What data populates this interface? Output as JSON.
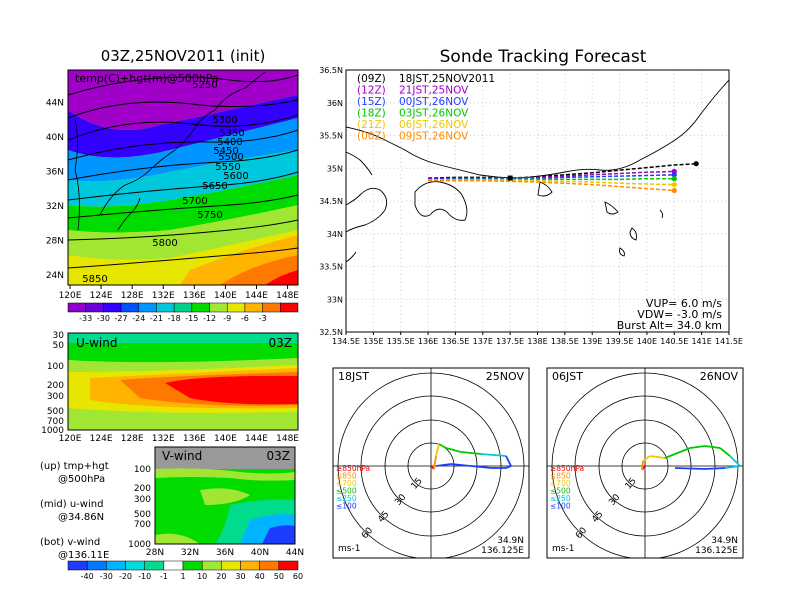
{
  "main_title": "03Z,25NOV2011 (init)",
  "track_title": "Sonde Tracking Forecast",
  "upper_map": {
    "overlay_label": "temp(C)+hgt(m)@500hPa",
    "x_ticks": [
      "120E",
      "124E",
      "128E",
      "132E",
      "136E",
      "140E",
      "144E",
      "148E"
    ],
    "y_ticks": [
      "24N",
      "28N",
      "32N",
      "36N",
      "40N",
      "44N"
    ],
    "contour_labels": [
      "5250",
      "5300",
      "5350",
      "5400",
      "5450",
      "5500",
      "5550",
      "5600",
      "5650",
      "5700",
      "5750",
      "5800",
      "5850"
    ],
    "colorbar_labels": [
      "-33",
      "-30",
      "-27",
      "-24",
      "-21",
      "-18",
      "-15",
      "-12",
      "-9",
      "-6",
      "-3"
    ],
    "colorbar_colors": [
      "#9000c8",
      "#6a00dc",
      "#3300ff",
      "#0050ff",
      "#0096ff",
      "#00c8dc",
      "#00d28c",
      "#00dc00",
      "#a0e632",
      "#e6e600",
      "#ffb400",
      "#ff7800",
      "#ff0000"
    ]
  },
  "u_wind": {
    "title": "U-wind",
    "time": "03Z",
    "y_ticks": [
      "30",
      "50",
      "100",
      "200",
      "300",
      "500",
      "700",
      "1000"
    ],
    "x_ticks": [
      "120E",
      "124E",
      "128E",
      "132E",
      "136E",
      "140E",
      "144E",
      "148E"
    ]
  },
  "v_wind": {
    "title": "V-wind",
    "time": "03Z",
    "y_ticks": [
      "100",
      "200",
      "300",
      "500",
      "700",
      "1000"
    ],
    "x_ticks": [
      "28N",
      "32N",
      "36N",
      "40N",
      "44N"
    ]
  },
  "side_labels": {
    "up_1": "(up) tmp+hgt",
    "up_2": "@500hPa",
    "mid_1": "(mid) u-wind",
    "mid_2": "@34.86N",
    "bot_1": "(bot) v-wind",
    "bot_2": "@136.11E"
  },
  "wind_colorbar": {
    "labels": [
      "-40",
      "-30",
      "-20",
      "-10",
      "-1",
      "1",
      "10",
      "20",
      "30",
      "40",
      "50",
      "60"
    ],
    "colors": [
      "#1e3cff",
      "#0078ff",
      "#00b4ff",
      "#00dcdc",
      "#00dc8c",
      "#ffffff",
      "#00dc00",
      "#a0e632",
      "#e6e600",
      "#ffb400",
      "#ff7800",
      "#ff0000"
    ]
  },
  "legend_entries": [
    {
      "code": "(09Z)",
      "text": "18JST,25NOV2011",
      "color": "#000000"
    },
    {
      "code": "(12Z)",
      "text": "21JST,25NOV",
      "color": "#a000c8"
    },
    {
      "code": "(15Z)",
      "text": "00JST,26NOV",
      "color": "#1e3cff"
    },
    {
      "code": "(18Z)",
      "text": "03JST,26NOV",
      "color": "#00c800"
    },
    {
      "code": "(21Z)",
      "text": "06JST,26NOV",
      "color": "#f0c800"
    },
    {
      "code": "(00Z)",
      "text": "09JST,26NOV",
      "color": "#ff8c00"
    }
  ],
  "track_info": {
    "vup": "VUP=  6.0  m/s",
    "vdw": "VDW= -3.0  m/s",
    "burst": "Burst Alt= 34.0  km"
  },
  "hodographs": [
    {
      "time": "18JST",
      "date": "25NOV",
      "lat": "34.9N",
      "lon": "136.125E",
      "unit": "ms-1"
    },
    {
      "time": "06JST",
      "date": "26NOV",
      "lat": "34.9N",
      "lon": "136.125E",
      "unit": "ms-1"
    }
  ],
  "hodo_rings": [
    "15",
    "30",
    "45",
    "60"
  ],
  "hodo_legend": [
    {
      "label": "≥850hPa",
      "color": "#ff0000"
    },
    {
      "label": "≤850",
      "color": "#ff8c00"
    },
    {
      "label": "≤700",
      "color": "#f0c800"
    },
    {
      "label": "≤500",
      "color": "#00c800"
    },
    {
      "label": "≤250",
      "color": "#00c8dc"
    },
    {
      "label": "≤100",
      "color": "#1e3cff"
    }
  ],
  "chart_data": {
    "type": "line",
    "title": "Sonde Tracking Forecast",
    "xlabel": "",
    "ylabel": "",
    "x_ticks": [
      "134.5E",
      "135E",
      "135.5E",
      "136E",
      "136.5E",
      "137E",
      "137.5E",
      "138E",
      "138.5E",
      "139E",
      "139.5E",
      "140E",
      "140.5E",
      "141E",
      "141.5E"
    ],
    "y_ticks": [
      "32.5N",
      "33N",
      "33.5N",
      "34N",
      "34.5N",
      "35N",
      "35.5N",
      "36N",
      "36.5N"
    ],
    "xlim": [
      134.5,
      141.5
    ],
    "ylim": [
      32.5,
      36.5
    ],
    "grid": true,
    "legend_position": "top-left",
    "launch_point": {
      "lon": 137.5,
      "lat": 34.85
    },
    "series": [
      {
        "name": "(09Z) 18JST,25NOV2011",
        "color": "#000000",
        "x": [
          136.0,
          136.5,
          137.0,
          137.5,
          138.0,
          138.5,
          139.0,
          139.5,
          140.0,
          140.5,
          140.9
        ],
        "y": [
          34.85,
          34.86,
          34.86,
          34.85,
          34.87,
          34.9,
          34.93,
          34.97,
          35.01,
          35.05,
          35.07
        ]
      },
      {
        "name": "(12Z) 21JST,25NOV",
        "color": "#a000c8",
        "x": [
          136.0,
          136.5,
          137.0,
          137.5,
          138.0,
          138.5,
          139.0,
          139.5,
          140.0,
          140.5
        ],
        "y": [
          34.84,
          34.85,
          34.85,
          34.85,
          34.86,
          34.88,
          34.9,
          34.92,
          34.94,
          34.95
        ]
      },
      {
        "name": "(15Z) 00JST,26NOV",
        "color": "#1e3cff",
        "x": [
          136.0,
          136.5,
          137.0,
          137.5,
          138.0,
          138.5,
          139.0,
          139.5,
          140.0,
          140.5
        ],
        "y": [
          34.83,
          34.84,
          34.84,
          34.84,
          34.85,
          34.86,
          34.87,
          34.88,
          34.89,
          34.9
        ]
      },
      {
        "name": "(18Z) 03JST,26NOV",
        "color": "#00c800",
        "x": [
          136.0,
          136.5,
          137.0,
          137.5,
          138.0,
          138.5,
          139.0,
          139.5,
          140.0,
          140.5
        ],
        "y": [
          34.82,
          34.83,
          34.83,
          34.83,
          34.83,
          34.83,
          34.83,
          34.83,
          34.84,
          34.84
        ]
      },
      {
        "name": "(21Z) 06JST,26NOV",
        "color": "#f0c800",
        "x": [
          136.0,
          136.5,
          137.0,
          137.5,
          138.0,
          138.5,
          139.0,
          139.5,
          140.0,
          140.5
        ],
        "y": [
          34.82,
          34.82,
          34.82,
          34.82,
          34.81,
          34.8,
          34.79,
          34.77,
          34.76,
          34.75
        ]
      },
      {
        "name": "(00Z) 09JST,26NOV",
        "color": "#ff8c00",
        "x": [
          136.0,
          136.5,
          137.0,
          137.5,
          138.0,
          138.5,
          139.0,
          139.5,
          140.0,
          140.5
        ],
        "y": [
          34.81,
          34.81,
          34.81,
          34.8,
          34.79,
          34.77,
          34.75,
          34.72,
          34.69,
          34.66
        ]
      }
    ]
  }
}
